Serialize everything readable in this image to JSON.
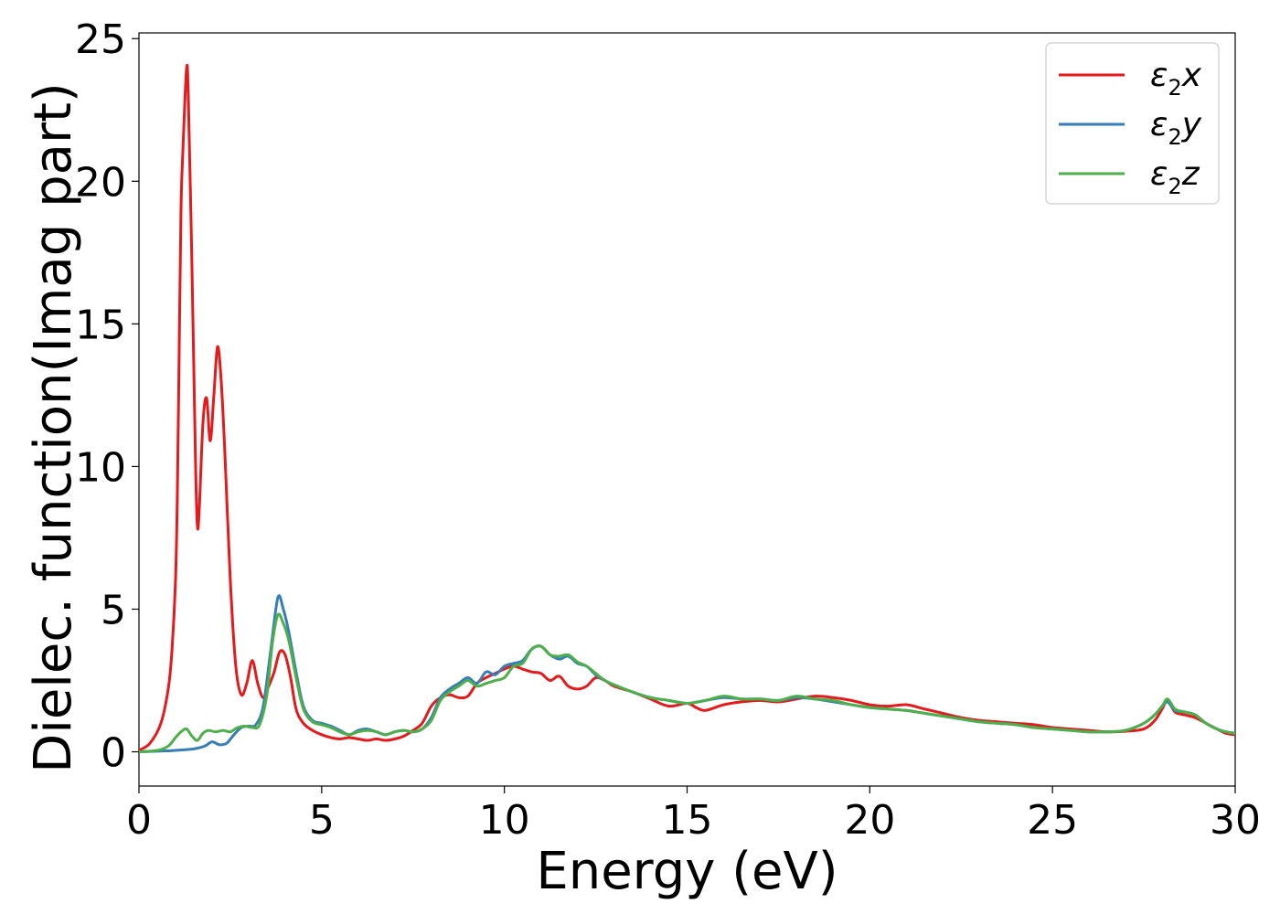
{
  "chart_data": {
    "type": "line",
    "xlabel": "Energy (eV)",
    "ylabel": "Dielec. function(Imag part)",
    "xlim": [
      0,
      30
    ],
    "ylim": [
      -1.2,
      25.2
    ],
    "xticks": [
      "0",
      "5",
      "10",
      "15",
      "20",
      "25",
      "30"
    ],
    "yticks": [
      "0",
      "5",
      "10",
      "15",
      "20",
      "25"
    ],
    "grid": false,
    "legend_position": "top-right",
    "series": [
      {
        "name": "ε2x",
        "legend_main": "ε",
        "legend_sub": "2",
        "legend_suffix": "x",
        "color": "#e41a1c",
        "x": [
          0,
          0.3,
          0.6,
          0.8,
          0.9,
          1.0,
          1.05,
          1.1,
          1.15,
          1.2,
          1.3,
          1.35,
          1.45,
          1.55,
          1.6,
          1.65,
          1.75,
          1.85,
          1.95,
          2.05,
          2.15,
          2.25,
          2.35,
          2.5,
          2.65,
          2.8,
          2.95,
          3.1,
          3.25,
          3.4,
          3.55,
          3.7,
          3.85,
          4.0,
          4.15,
          4.3,
          4.5,
          4.75,
          5.0,
          5.25,
          5.5,
          5.75,
          6.0,
          6.25,
          6.5,
          6.75,
          7.0,
          7.25,
          7.5,
          7.75,
          8.0,
          8.25,
          8.5,
          8.75,
          9.0,
          9.25,
          9.5,
          9.75,
          10.0,
          10.25,
          10.5,
          10.75,
          11.0,
          11.25,
          11.5,
          11.75,
          12.0,
          12.25,
          12.5,
          12.75,
          13.0,
          13.5,
          14.0,
          14.5,
          15.0,
          15.25,
          15.5,
          16.0,
          16.5,
          17.0,
          17.5,
          18.0,
          18.5,
          19.0,
          19.5,
          20.0,
          20.5,
          21.0,
          21.5,
          22.0,
          22.5,
          23.0,
          23.5,
          24.0,
          24.5,
          25.0,
          25.5,
          26.0,
          26.5,
          27.0,
          27.5,
          27.8,
          28.0,
          28.15,
          28.35,
          28.6,
          28.9,
          29.2,
          29.5,
          29.75,
          30.0
        ],
        "values": [
          0.05,
          0.3,
          1.0,
          2.2,
          3.5,
          6.0,
          9.0,
          14.0,
          19.0,
          21.0,
          23.9,
          23.0,
          17.0,
          10.0,
          7.9,
          8.5,
          11.5,
          12.4,
          10.9,
          12.5,
          14.2,
          13.0,
          10.5,
          6.0,
          3.0,
          2.0,
          2.4,
          3.2,
          2.4,
          1.9,
          2.3,
          2.8,
          3.5,
          3.4,
          2.6,
          1.5,
          1.0,
          0.75,
          0.6,
          0.5,
          0.45,
          0.5,
          0.45,
          0.4,
          0.45,
          0.4,
          0.45,
          0.55,
          0.75,
          1.0,
          1.6,
          1.9,
          2.0,
          1.9,
          1.95,
          2.4,
          2.6,
          2.75,
          2.9,
          3.0,
          2.9,
          2.8,
          2.75,
          2.5,
          2.65,
          2.3,
          2.2,
          2.3,
          2.6,
          2.5,
          2.3,
          2.1,
          1.85,
          1.6,
          1.7,
          1.55,
          1.45,
          1.65,
          1.75,
          1.8,
          1.75,
          1.85,
          1.95,
          1.9,
          1.8,
          1.65,
          1.6,
          1.65,
          1.5,
          1.35,
          1.2,
          1.1,
          1.05,
          1.0,
          0.95,
          0.85,
          0.8,
          0.75,
          0.7,
          0.72,
          0.8,
          1.1,
          1.5,
          1.8,
          1.4,
          1.3,
          1.2,
          1.0,
          0.8,
          0.65,
          0.6
        ]
      },
      {
        "name": "ε2y",
        "legend_main": "ε",
        "legend_sub": "2",
        "legend_suffix": "y",
        "color": "#377eb8",
        "x": [
          0,
          0.5,
          1.0,
          1.5,
          1.8,
          2.0,
          2.2,
          2.4,
          2.6,
          2.8,
          3.0,
          3.2,
          3.4,
          3.6,
          3.8,
          3.95,
          4.1,
          4.3,
          4.5,
          4.75,
          5.0,
          5.25,
          5.5,
          5.75,
          6.0,
          6.25,
          6.5,
          6.75,
          7.0,
          7.25,
          7.5,
          7.75,
          8.0,
          8.25,
          8.5,
          8.75,
          9.0,
          9.25,
          9.5,
          9.75,
          10.0,
          10.25,
          10.5,
          10.75,
          11.0,
          11.25,
          11.5,
          11.75,
          12.0,
          12.25,
          12.5,
          12.75,
          13.0,
          13.5,
          14.0,
          14.5,
          15.0,
          15.5,
          16.0,
          16.5,
          17.0,
          17.5,
          18.0,
          18.5,
          19.0,
          19.5,
          20.0,
          20.5,
          21.0,
          21.5,
          22.0,
          22.5,
          23.0,
          23.5,
          24.0,
          24.5,
          25.0,
          25.5,
          26.0,
          26.5,
          27.0,
          27.5,
          27.8,
          28.0,
          28.15,
          28.35,
          28.6,
          28.9,
          29.2,
          29.5,
          29.75,
          30.0
        ],
        "values": [
          0.0,
          0.02,
          0.05,
          0.1,
          0.2,
          0.35,
          0.25,
          0.3,
          0.6,
          0.85,
          0.9,
          0.95,
          1.6,
          3.5,
          5.4,
          5.0,
          4.2,
          2.8,
          1.6,
          1.1,
          1.0,
          0.9,
          0.75,
          0.6,
          0.75,
          0.8,
          0.7,
          0.6,
          0.7,
          0.75,
          0.7,
          0.8,
          1.2,
          1.9,
          2.2,
          2.4,
          2.6,
          2.4,
          2.8,
          2.7,
          3.0,
          3.1,
          3.2,
          3.6,
          3.7,
          3.4,
          3.25,
          3.35,
          3.1,
          3.0,
          2.7,
          2.5,
          2.35,
          2.1,
          1.9,
          1.8,
          1.7,
          1.8,
          1.9,
          1.85,
          1.85,
          1.8,
          1.9,
          1.85,
          1.75,
          1.65,
          1.55,
          1.5,
          1.45,
          1.35,
          1.25,
          1.15,
          1.05,
          1.0,
          0.95,
          0.85,
          0.8,
          0.75,
          0.7,
          0.7,
          0.75,
          1.0,
          1.3,
          1.6,
          1.75,
          1.45,
          1.4,
          1.3,
          1.0,
          0.8,
          0.7,
          0.65
        ]
      },
      {
        "name": "ε2z",
        "legend_main": "ε",
        "legend_sub": "2",
        "legend_suffix": "z",
        "color": "#4daf4a",
        "x": [
          0,
          0.5,
          0.8,
          1.0,
          1.15,
          1.3,
          1.45,
          1.6,
          1.75,
          1.9,
          2.1,
          2.3,
          2.5,
          2.7,
          2.9,
          3.1,
          3.3,
          3.5,
          3.65,
          3.8,
          3.95,
          4.1,
          4.3,
          4.5,
          4.75,
          5.0,
          5.25,
          5.5,
          5.75,
          6.0,
          6.25,
          6.5,
          6.75,
          7.0,
          7.25,
          7.5,
          7.75,
          8.0,
          8.25,
          8.5,
          8.75,
          9.0,
          9.25,
          9.5,
          9.75,
          10.0,
          10.25,
          10.5,
          10.75,
          11.0,
          11.25,
          11.5,
          11.75,
          12.0,
          12.25,
          12.5,
          12.75,
          13.0,
          13.5,
          14.0,
          14.5,
          15.0,
          15.5,
          16.0,
          16.5,
          17.0,
          17.5,
          18.0,
          18.5,
          19.0,
          19.5,
          20.0,
          20.5,
          21.0,
          21.5,
          22.0,
          22.5,
          23.0,
          23.5,
          24.0,
          24.5,
          25.0,
          25.5,
          26.0,
          26.5,
          27.0,
          27.5,
          27.8,
          28.0,
          28.15,
          28.35,
          28.6,
          28.9,
          29.2,
          29.5,
          29.75,
          30.0
        ],
        "values": [
          0.0,
          0.05,
          0.2,
          0.5,
          0.7,
          0.8,
          0.55,
          0.4,
          0.65,
          0.75,
          0.7,
          0.75,
          0.7,
          0.85,
          0.9,
          0.85,
          0.95,
          2.0,
          3.8,
          4.8,
          4.5,
          3.9,
          2.6,
          1.5,
          1.05,
          0.95,
          0.85,
          0.7,
          0.6,
          0.7,
          0.75,
          0.7,
          0.6,
          0.7,
          0.75,
          0.7,
          0.8,
          1.1,
          1.8,
          2.1,
          2.3,
          2.5,
          2.3,
          2.4,
          2.5,
          2.6,
          3.0,
          3.1,
          3.6,
          3.7,
          3.4,
          3.35,
          3.4,
          3.15,
          3.0,
          2.75,
          2.5,
          2.35,
          2.1,
          1.9,
          1.8,
          1.7,
          1.8,
          1.95,
          1.85,
          1.85,
          1.8,
          1.95,
          1.85,
          1.8,
          1.65,
          1.55,
          1.5,
          1.45,
          1.35,
          1.25,
          1.15,
          1.05,
          1.0,
          0.95,
          0.85,
          0.8,
          0.75,
          0.7,
          0.7,
          0.75,
          1.0,
          1.3,
          1.6,
          1.85,
          1.5,
          1.4,
          1.3,
          1.0,
          0.8,
          0.7,
          0.65
        ]
      }
    ]
  }
}
